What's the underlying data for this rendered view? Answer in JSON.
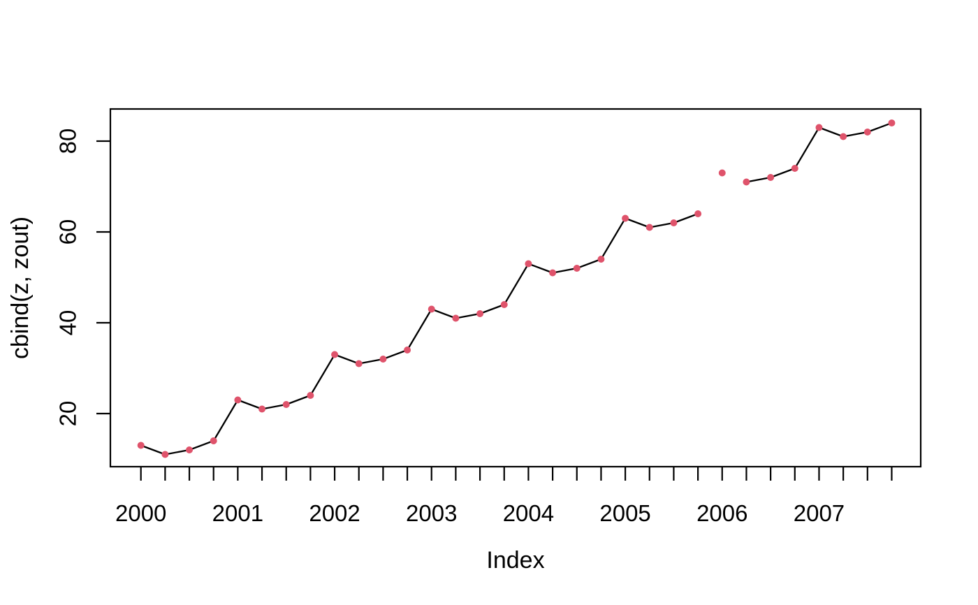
{
  "figure": {
    "background": "#ffffff",
    "kind": "r-base-timeseries-plot"
  },
  "chart_data": {
    "type": "line",
    "title": "",
    "xlabel": "Index",
    "ylabel": "cbind(z, zout)",
    "x_start_year": 2000,
    "frequency": 4,
    "n_points": 32,
    "x_tick_labels": [
      "2000",
      "2001",
      "2002",
      "2003",
      "2004",
      "2005",
      "2006",
      "2007"
    ],
    "y_tick_values": [
      20,
      40,
      60,
      80
    ],
    "y_tick_labels": [
      "20",
      "40",
      "60",
      "80"
    ],
    "xlim": [
      1999.69,
      2008.06
    ],
    "ylim": [
      8.1,
      86.9
    ],
    "grid": false,
    "legend_position": "none",
    "line_color": "#000000",
    "point_color": "#DF536B",
    "axis_color": "#000000",
    "series": [
      {
        "name": "z",
        "type": "line+points",
        "values": [
          13,
          11,
          12,
          14,
          23,
          21,
          22,
          24,
          33,
          31,
          32,
          34,
          43,
          41,
          42,
          44,
          53,
          51,
          52,
          54,
          63,
          61,
          62,
          64,
          null,
          71,
          72,
          74,
          83,
          81,
          82,
          84
        ]
      },
      {
        "name": "zout",
        "type": "points",
        "values": [
          null,
          null,
          null,
          null,
          null,
          null,
          null,
          null,
          null,
          null,
          null,
          null,
          null,
          null,
          null,
          null,
          null,
          null,
          null,
          null,
          null,
          null,
          null,
          null,
          73,
          null,
          null,
          null,
          null,
          null,
          null,
          null
        ]
      }
    ]
  }
}
